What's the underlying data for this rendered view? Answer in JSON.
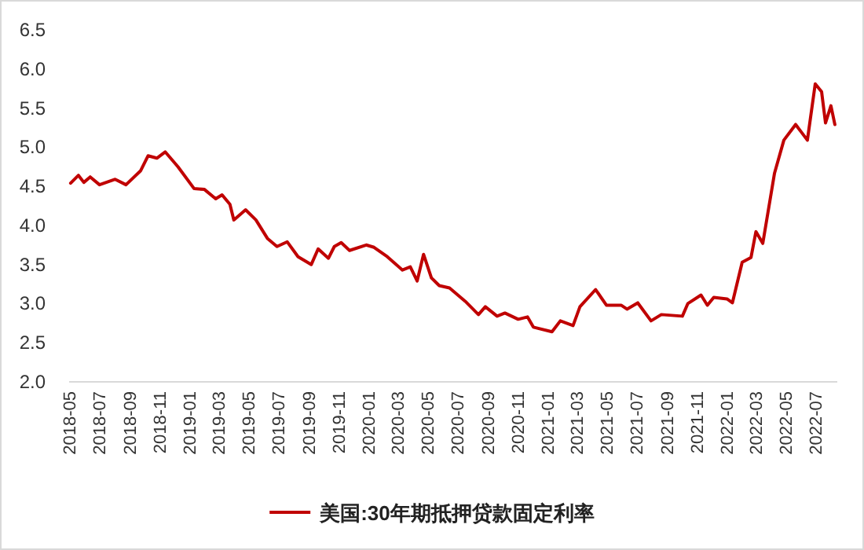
{
  "chart_data": {
    "type": "line",
    "legend": "bottom",
    "x": [
      "2018-05-04",
      "2018-05-20",
      "2018-05-31",
      "2018-06-13",
      "2018-07-02",
      "2018-08-03",
      "2018-08-25",
      "2018-09-24",
      "2018-10-09",
      "2018-10-27",
      "2018-11-13",
      "2018-12-09",
      "2019-01-11",
      "2019-02-01",
      "2019-02-24",
      "2019-03-09",
      "2019-03-25",
      "2019-04-02",
      "2019-04-26",
      "2019-05-17",
      "2019-06-10",
      "2019-06-29",
      "2019-07-20",
      "2019-08-11",
      "2019-09-07",
      "2019-09-21",
      "2019-10-12",
      "2019-10-24",
      "2019-11-07",
      "2019-11-24",
      "2019-12-28",
      "2020-01-13",
      "2020-02-09",
      "2020-03-11",
      "2020-03-27",
      "2020-04-10",
      "2020-04-23",
      "2020-05-09",
      "2020-05-25",
      "2020-06-15",
      "2020-07-17",
      "2020-08-13",
      "2020-08-27",
      "2020-09-20",
      "2020-10-06",
      "2020-11-02",
      "2020-11-21",
      "2020-12-03",
      "2021-01-10",
      "2021-01-27",
      "2021-02-22",
      "2021-03-08",
      "2021-04-09",
      "2021-05-01",
      "2021-05-31",
      "2021-06-12",
      "2021-07-04",
      "2021-07-31",
      "2021-08-21",
      "2021-10-03",
      "2021-10-14",
      "2021-11-10",
      "2021-11-23",
      "2021-12-06",
      "2022-01-02",
      "2022-01-13",
      "2022-02-02",
      "2022-02-20",
      "2022-03-02",
      "2022-03-16",
      "2022-04-09",
      "2022-04-28",
      "2022-05-22",
      "2022-06-15",
      "2022-07-01",
      "2022-07-14",
      "2022-07-22",
      "2022-08-02",
      "2022-08-10"
    ],
    "series": [
      {
        "name": "美国:30年期抵押贷款固定利率",
        "color": "#c00000",
        "values": [
          4.54,
          4.64,
          4.55,
          4.62,
          4.52,
          4.59,
          4.52,
          4.7,
          4.89,
          4.86,
          4.94,
          4.75,
          4.47,
          4.46,
          4.34,
          4.39,
          4.27,
          4.07,
          4.2,
          4.07,
          3.83,
          3.73,
          3.79,
          3.6,
          3.5,
          3.7,
          3.58,
          3.73,
          3.78,
          3.68,
          3.75,
          3.72,
          3.6,
          3.43,
          3.47,
          3.29,
          3.63,
          3.33,
          3.23,
          3.2,
          3.03,
          2.86,
          2.96,
          2.84,
          2.88,
          2.8,
          2.83,
          2.7,
          2.64,
          2.78,
          2.72,
          2.96,
          3.18,
          2.98,
          2.98,
          2.93,
          3.01,
          2.78,
          2.86,
          2.84,
          3.0,
          3.11,
          2.98,
          3.08,
          3.06,
          3.01,
          3.53,
          3.59,
          3.92,
          3.77,
          4.67,
          5.09,
          5.29,
          5.09,
          5.81,
          5.71,
          5.31,
          5.53,
          5.29
        ]
      }
    ],
    "xlim": [
      "2018-05-01",
      "2022-08-15"
    ],
    "xticks": [
      "2018-05",
      "2018-07",
      "2018-09",
      "2018-11",
      "2019-01",
      "2019-03",
      "2019-05",
      "2019-07",
      "2019-09",
      "2019-11",
      "2020-01",
      "2020-03",
      "2020-05",
      "2020-07",
      "2020-09",
      "2020-11",
      "2021-01",
      "2021-03",
      "2021-05",
      "2021-07",
      "2021-09",
      "2021-11",
      "2022-01",
      "2022-03",
      "2022-05",
      "2022-07"
    ],
    "ylim": [
      2.0,
      6.5
    ],
    "yticks": [
      {
        "value": 2,
        "label": "2.0"
      },
      {
        "value": 2.5,
        "label": "2.5"
      },
      {
        "value": 3,
        "label": "3.0"
      },
      {
        "value": 3.5,
        "label": "3.5"
      },
      {
        "value": 4,
        "label": "4.0"
      },
      {
        "value": 4.5,
        "label": "4.5"
      },
      {
        "value": 5,
        "label": "5.0"
      },
      {
        "value": 5.5,
        "label": "5.5"
      },
      {
        "value": 6,
        "label": "6.0"
      },
      {
        "value": 6.5,
        "label": "6.5"
      }
    ]
  }
}
